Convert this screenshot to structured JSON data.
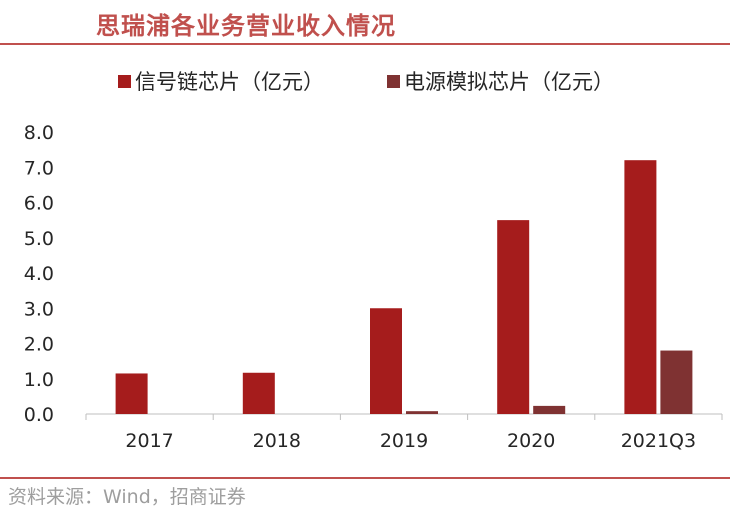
{
  "header": {
    "title": "思瑞浦各业务营业收入情况"
  },
  "footer": {
    "source": "资料来源：Wind，招商证券"
  },
  "chart_data": {
    "type": "bar",
    "title": "思瑞浦各业务营业收入情况",
    "xlabel": "",
    "ylabel": "",
    "categories": [
      "2017",
      "2018",
      "2019",
      "2020",
      "2021Q3"
    ],
    "series": [
      {
        "name": "信号链芯片（亿元）",
        "color": "#A51C1C",
        "values": [
          1.15,
          1.17,
          3.0,
          5.5,
          7.2
        ]
      },
      {
        "name": "电源模拟芯片（亿元）",
        "color": "#7F3232",
        "values": [
          0.0,
          0.0,
          0.08,
          0.23,
          1.8
        ]
      }
    ],
    "ylim": [
      0,
      8
    ],
    "yticks": [
      "0.0",
      "1.0",
      "2.0",
      "3.0",
      "4.0",
      "5.0",
      "6.0",
      "7.0",
      "8.0"
    ],
    "grid": false,
    "legend_position": "top"
  }
}
